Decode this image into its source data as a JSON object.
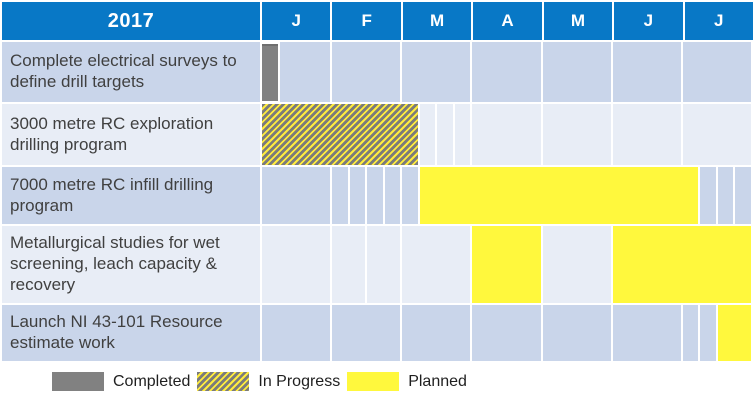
{
  "header": {
    "year_label": "2017",
    "months": [
      "J",
      "F",
      "M",
      "A",
      "M",
      "J",
      "J"
    ]
  },
  "total_weeks": 28,
  "weeks_per_month": 4,
  "colors": {
    "header_bg": "#0878c6",
    "row_dark": "#c9d5ea",
    "row_light": "#e8edf6",
    "planned": "#fff83d",
    "completed": "#818181",
    "hatch_gray": "#7b7b7b",
    "hatch_yellow": "#ffec3d",
    "task_text": "#404040"
  },
  "rows": [
    {
      "label": "Complete electrical surveys to define drill targets",
      "shade": "dark",
      "segments": [
        {
          "type": "completed",
          "start": 0,
          "end": 1
        },
        {
          "type": "empty",
          "start": 1,
          "end": 4
        },
        {
          "type": "empty",
          "start": 4,
          "end": 8
        },
        {
          "type": "empty",
          "start": 8,
          "end": 12
        },
        {
          "type": "empty",
          "start": 12,
          "end": 16
        },
        {
          "type": "empty",
          "start": 16,
          "end": 20
        },
        {
          "type": "empty",
          "start": 20,
          "end": 24
        },
        {
          "type": "empty",
          "start": 24,
          "end": 28
        }
      ]
    },
    {
      "label": "3000 metre RC exploration drilling program",
      "shade": "light",
      "segments": [
        {
          "type": "inprogress",
          "start": 0,
          "end": 9
        },
        {
          "type": "empty",
          "start": 9,
          "end": 10
        },
        {
          "type": "empty",
          "start": 10,
          "end": 11
        },
        {
          "type": "empty",
          "start": 11,
          "end": 12
        },
        {
          "type": "empty",
          "start": 12,
          "end": 16
        },
        {
          "type": "empty",
          "start": 16,
          "end": 20
        },
        {
          "type": "empty",
          "start": 20,
          "end": 24
        },
        {
          "type": "empty",
          "start": 24,
          "end": 28
        }
      ]
    },
    {
      "label": "7000 metre RC infill drilling program",
      "shade": "dark",
      "segments": [
        {
          "type": "empty",
          "start": 0,
          "end": 4
        },
        {
          "type": "empty",
          "start": 4,
          "end": 5
        },
        {
          "type": "empty",
          "start": 5,
          "end": 6
        },
        {
          "type": "empty",
          "start": 6,
          "end": 7
        },
        {
          "type": "empty",
          "start": 7,
          "end": 8
        },
        {
          "type": "empty",
          "start": 8,
          "end": 9
        },
        {
          "type": "planned",
          "start": 9,
          "end": 25
        },
        {
          "type": "empty",
          "start": 25,
          "end": 26
        },
        {
          "type": "empty",
          "start": 26,
          "end": 27
        },
        {
          "type": "empty",
          "start": 27,
          "end": 28
        }
      ]
    },
    {
      "label": "Metallurgical studies for wet screening, leach capacity & recovery",
      "shade": "light",
      "segments": [
        {
          "type": "empty",
          "start": 0,
          "end": 4
        },
        {
          "type": "empty",
          "start": 4,
          "end": 6
        },
        {
          "type": "empty",
          "start": 6,
          "end": 8
        },
        {
          "type": "empty",
          "start": 8,
          "end": 12
        },
        {
          "type": "planned",
          "start": 12,
          "end": 16
        },
        {
          "type": "empty",
          "start": 16,
          "end": 20
        },
        {
          "type": "planned",
          "start": 20,
          "end": 28
        }
      ]
    },
    {
      "label": "Launch NI 43-101 Resource estimate work",
      "shade": "dark",
      "segments": [
        {
          "type": "empty",
          "start": 0,
          "end": 4
        },
        {
          "type": "empty",
          "start": 4,
          "end": 8
        },
        {
          "type": "empty",
          "start": 8,
          "end": 12
        },
        {
          "type": "empty",
          "start": 12,
          "end": 16
        },
        {
          "type": "empty",
          "start": 16,
          "end": 20
        },
        {
          "type": "empty",
          "start": 20,
          "end": 24
        },
        {
          "type": "empty",
          "start": 24,
          "end": 25
        },
        {
          "type": "empty",
          "start": 25,
          "end": 26
        },
        {
          "type": "planned",
          "start": 26,
          "end": 28
        }
      ]
    }
  ],
  "legend": [
    {
      "type": "completed",
      "label": "Completed"
    },
    {
      "type": "inprogress",
      "label": "In Progress"
    },
    {
      "type": "planned",
      "label": "Planned"
    }
  ],
  "chart_data": {
    "type": "gantt",
    "title": "2017",
    "x_axis": {
      "unit": "weeks",
      "range": [
        0,
        28
      ],
      "month_labels": [
        "J",
        "F",
        "M",
        "A",
        "M",
        "J",
        "J"
      ],
      "weeks_per_month": 4
    },
    "legend_position": "bottom",
    "tasks": [
      {
        "name": "Complete electrical surveys to define drill targets",
        "status": "Completed",
        "bars_weeks": [
          [
            0,
            1
          ]
        ],
        "span": "Jan wk1"
      },
      {
        "name": "3000 metre RC exploration drilling program",
        "status": "In Progress",
        "bars_weeks": [
          [
            0,
            9
          ]
        ],
        "span": "Jan wk1 - Mar wk1"
      },
      {
        "name": "7000 metre RC infill drilling program",
        "status": "Planned",
        "bars_weeks": [
          [
            9,
            25
          ]
        ],
        "span": "Mar wk2 - Jul wk1"
      },
      {
        "name": "Metallurgical studies for wet screening, leach capacity & recovery",
        "status": "Planned",
        "bars_weeks": [
          [
            12,
            16
          ],
          [
            20,
            28
          ]
        ],
        "span": "Apr; Jun - Jul"
      },
      {
        "name": "Launch NI 43-101 Resource estimate work",
        "status": "Planned",
        "bars_weeks": [
          [
            26,
            28
          ]
        ],
        "span": "Jul wk3 - Jul wk4"
      }
    ]
  }
}
